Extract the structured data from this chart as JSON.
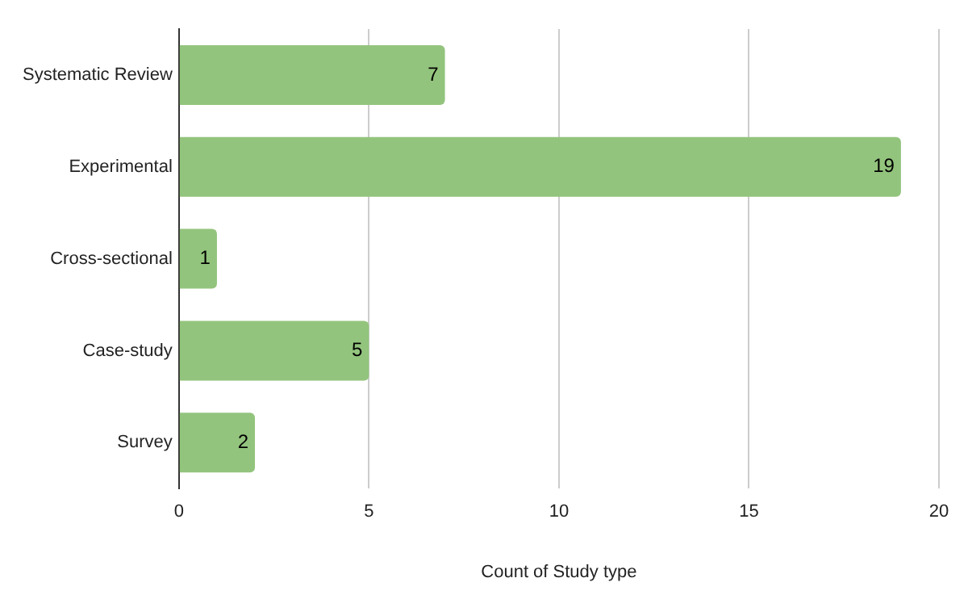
{
  "chart_data": {
    "type": "bar",
    "orientation": "horizontal",
    "categories": [
      "Systematic Review",
      "Experimental",
      "Cross-sectional",
      "Case-study",
      "Survey"
    ],
    "values": [
      7,
      19,
      1,
      5,
      2
    ],
    "color": "#93c47d",
    "xlabel": "Count of Study type",
    "xlim": [
      0,
      20
    ],
    "xticks": [
      0,
      5,
      10,
      15,
      20
    ],
    "grid": "x",
    "data_labels": true,
    "legend": false
  }
}
